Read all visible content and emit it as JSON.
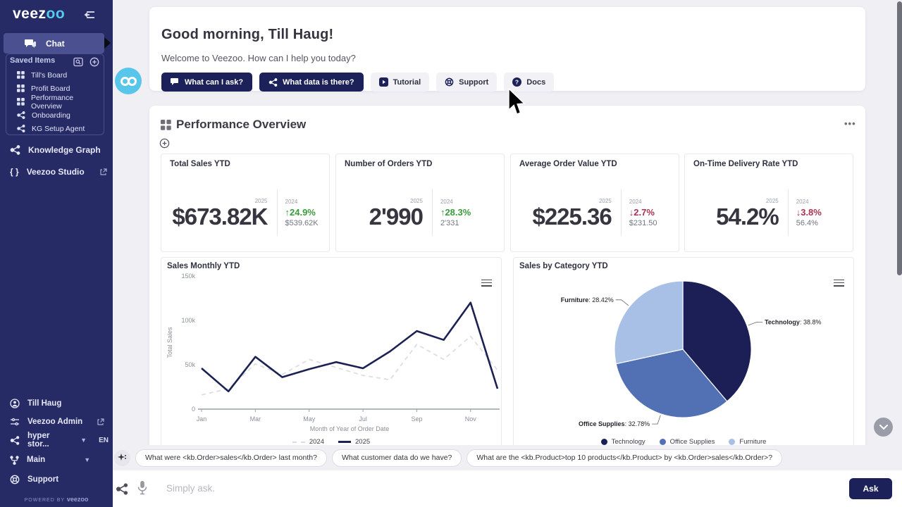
{
  "app": {
    "logo_prefix": "veez",
    "logo_suffix": "oo",
    "powered_by": "POWERED BY",
    "powered_brand": "veezoo"
  },
  "sidebar": {
    "chat_label": "Chat",
    "saved_items_title": "Saved Items",
    "saved_items": [
      {
        "label": "Till's Board",
        "icon": "board"
      },
      {
        "label": "Profit Board",
        "icon": "board"
      },
      {
        "label": "Performance Overview",
        "icon": "board"
      },
      {
        "label": "Onboarding",
        "icon": "graph"
      },
      {
        "label": "KG Setup Agent",
        "icon": "graph"
      }
    ],
    "knowledge_graph_label": "Knowledge Graph",
    "studio_label": "Veezoo Studio",
    "bottom": [
      {
        "label": "Till Haug"
      },
      {
        "label": "Veezoo Admin"
      },
      {
        "label": "hyper stor...",
        "lang": "EN"
      },
      {
        "label": "Main"
      },
      {
        "label": "Support"
      }
    ]
  },
  "greeting": {
    "title": "Good morning, Till Haug!",
    "subtitle": "Welcome to Veezoo. How can I help you today?",
    "buttons": [
      {
        "label": "What can I ask?",
        "style": "dark"
      },
      {
        "label": "What data is there?",
        "style": "dark"
      },
      {
        "label": "Tutorial",
        "style": "light"
      },
      {
        "label": "Support",
        "style": "light"
      },
      {
        "label": "Docs",
        "style": "light"
      }
    ]
  },
  "dashboard": {
    "title": "Performance Overview",
    "menu_label": "...",
    "kpis": [
      {
        "title": "Total Sales YTD",
        "current_year": "2025",
        "current_value": "$673.82K",
        "prev_year": "2024",
        "change": "24.9%",
        "direction": "up",
        "arrow": "↑",
        "prev_value": "$539.62K"
      },
      {
        "title": "Number of Orders YTD",
        "current_year": "2025",
        "current_value": "2'990",
        "prev_year": "2024",
        "change": "28.3%",
        "direction": "up",
        "arrow": "↑",
        "prev_value": "2'331"
      },
      {
        "title": "Average Order Value YTD",
        "current_year": "2025",
        "current_value": "$225.36",
        "prev_year": "2024",
        "change": "2.7%",
        "direction": "down",
        "arrow": "↓",
        "prev_value": "$231.50"
      },
      {
        "title": "On-Time Delivery Rate YTD",
        "current_year": "2025",
        "current_value": "54.2%",
        "prev_year": "2024",
        "change": "3.8%",
        "direction": "down",
        "arrow": "↓",
        "prev_value": "56.4%"
      }
    ]
  },
  "chart_data": [
    {
      "type": "line",
      "title": "Sales Monthly YTD",
      "xlabel": "Month of Year of Order Date",
      "ylabel": "Total Sales",
      "x": [
        "Jan",
        "Feb",
        "Mar",
        "Apr",
        "May",
        "Jun",
        "Jul",
        "Aug",
        "Sep",
        "Oct",
        "Nov",
        "Dec"
      ],
      "x_tick_shown": [
        "Jan",
        "Mar",
        "May",
        "Jul",
        "Sep",
        "Nov"
      ],
      "ylim": [
        0,
        150000
      ],
      "yticks": [
        {
          "value": 0,
          "label": "0"
        },
        {
          "value": 50000,
          "label": "50k"
        },
        {
          "value": 100000,
          "label": "100k"
        },
        {
          "value": 150000,
          "label": "150k"
        }
      ],
      "grid": false,
      "legend_position": "bottom",
      "series": [
        {
          "name": "2024",
          "style": "dashed",
          "color": "#d9dce6",
          "values": [
            16000,
            23000,
            51000,
            39000,
            56000,
            47000,
            38000,
            33000,
            73000,
            56000,
            82000,
            44000
          ]
        },
        {
          "name": "2025",
          "style": "solid",
          "color": "#1b2153",
          "values": [
            46000,
            20000,
            59000,
            36000,
            45000,
            53000,
            46000,
            65000,
            88000,
            78000,
            120000,
            23000
          ]
        }
      ]
    },
    {
      "type": "pie",
      "title": "Sales by Category YTD",
      "legend_position": "bottom",
      "slices": [
        {
          "label": "Technology",
          "pct": 38.8,
          "pct_label": "38.8%",
          "color": "#1b1f55"
        },
        {
          "label": "Office Supplies",
          "pct": 32.78,
          "pct_label": "32.78%",
          "color": "#5270b4"
        },
        {
          "label": "Furniture",
          "pct": 28.42,
          "pct_label": "28.42%",
          "color": "#a8bfe6"
        }
      ]
    }
  ],
  "ask_bar": {
    "suggestions": [
      {
        "label": "What were <kb.Order>sales</kb.Order> last month?"
      },
      {
        "label": "What customer data do we have?"
      },
      {
        "label": "What are the <kb.Product>top 10 products</kb.Product> by <kb.Order>sales</kb.Order>?"
      }
    ],
    "placeholder": "Simply ask.",
    "ask_label": "Ask"
  }
}
